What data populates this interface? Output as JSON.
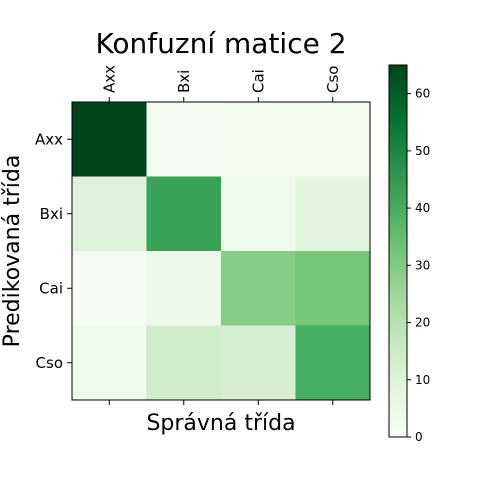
{
  "chart_data": {
    "type": "heatmap",
    "title": "Konfuzní matice 2",
    "xlabel": "Správná třída",
    "ylabel": "Predikovaná třída",
    "x_categories": [
      "Axx",
      "Bxi",
      "Cai",
      "Cso"
    ],
    "y_categories": [
      "Axx",
      "Bxi",
      "Cai",
      "Cso"
    ],
    "x_tick_position": "top",
    "values": [
      [
        65,
        1,
        2,
        2
      ],
      [
        10,
        43,
        3,
        9
      ],
      [
        1,
        5,
        29,
        32
      ],
      [
        3,
        14,
        12,
        40
      ]
    ],
    "colorbar": {
      "range": [
        0,
        65
      ],
      "ticks": [
        0,
        10,
        20,
        30,
        40,
        50,
        60
      ],
      "colormap": "Greens"
    },
    "grid": false
  }
}
